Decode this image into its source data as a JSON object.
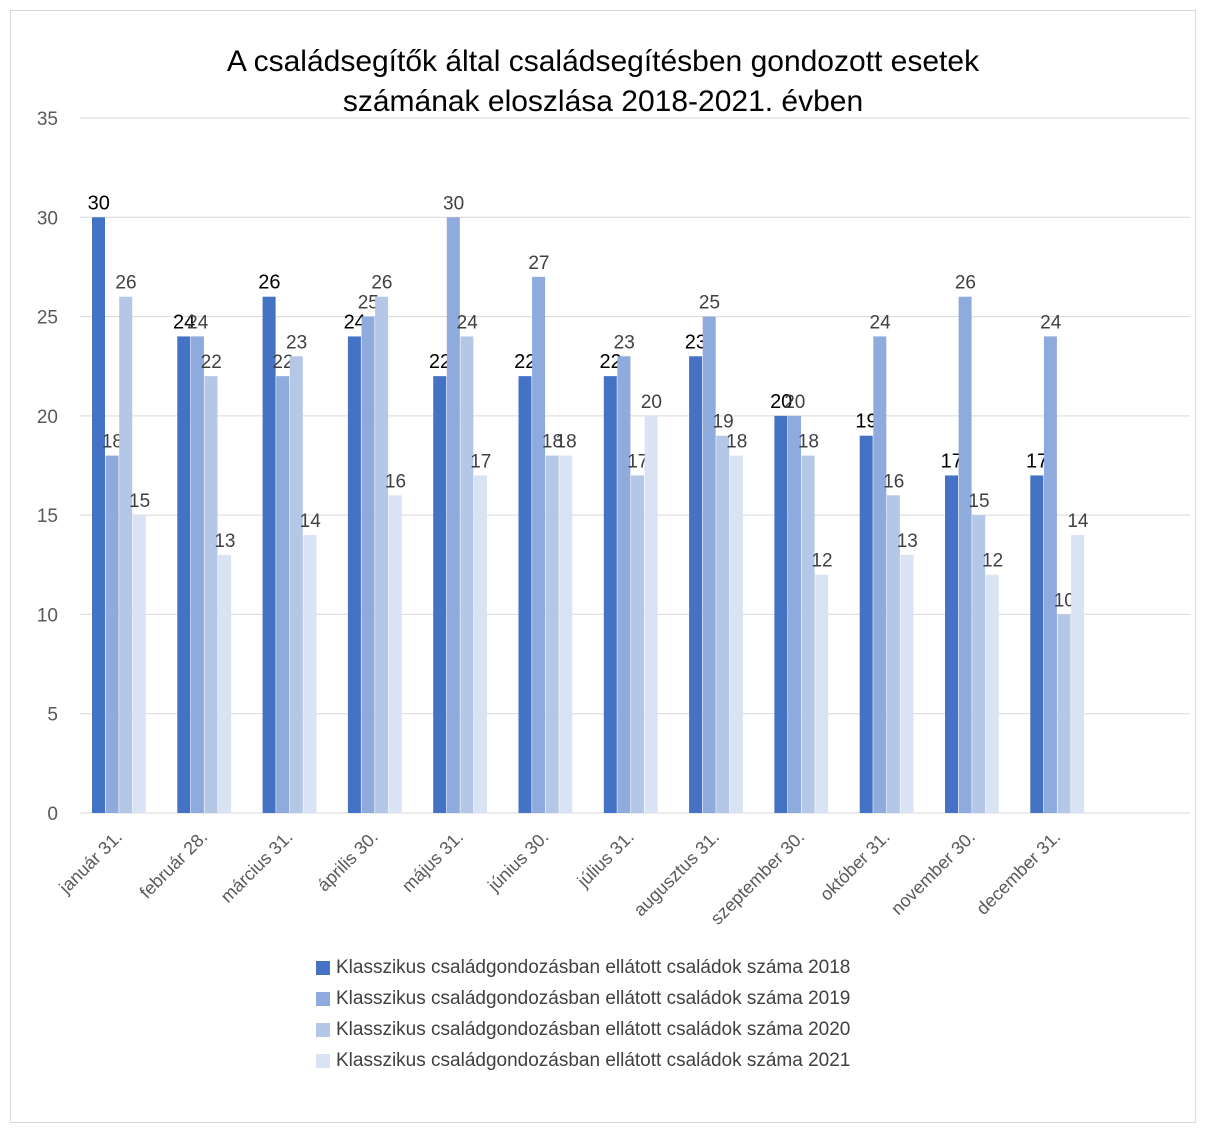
{
  "chart_data": {
    "type": "bar",
    "title_lines": [
      "A családsegítők által családsegítésben gondozott esetek",
      "számának eloszlása 2018-2021. évben"
    ],
    "categories": [
      "január 31.",
      "február 28.",
      "március 31.",
      "április 30.",
      "május 31.",
      "június 30.",
      "július 31.",
      "augusztus 31.",
      "szeptember 30.",
      "október 31.",
      "november 30.",
      "december 31."
    ],
    "series": [
      {
        "name": "Klasszikus családgondozásban ellátott  családok száma 2018",
        "color": "#4472c4",
        "label_color": "#000000",
        "values": [
          30,
          24,
          26,
          24,
          22,
          22,
          22,
          23,
          20,
          19,
          17,
          17
        ]
      },
      {
        "name": "Klasszikus családgondozásban ellátott  családok száma 2019",
        "color": "#8faadc",
        "label_color": "#404040",
        "values": [
          18,
          24,
          22,
          25,
          30,
          27,
          23,
          25,
          20,
          24,
          26,
          24
        ]
      },
      {
        "name": "Klasszikus családgondozásban ellátott családok száma 2020",
        "color": "#b4c7e7",
        "label_color": "#404040",
        "values": [
          26,
          22,
          23,
          26,
          24,
          18,
          17,
          19,
          18,
          16,
          15,
          10
        ]
      },
      {
        "name": "Klasszikus családgondozásban ellátott családok száma 2021",
        "color": "#dae3f3",
        "label_color": "#404040",
        "values": [
          15,
          13,
          14,
          16,
          17,
          18,
          20,
          18,
          12,
          13,
          12,
          14
        ]
      }
    ],
    "ylim": [
      0,
      35
    ],
    "yticks": [
      0,
      5,
      10,
      15,
      20,
      25,
      30,
      35
    ],
    "grid": true,
    "legend_position": "bottom"
  }
}
